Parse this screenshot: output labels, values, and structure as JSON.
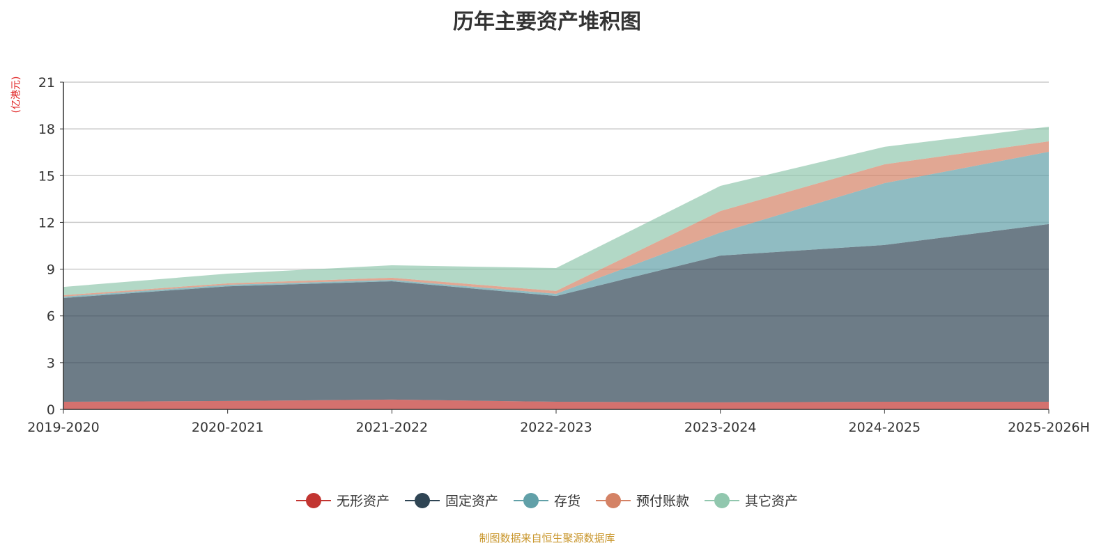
{
  "chart_data": {
    "type": "area",
    "stacked": true,
    "title": "历年主要资产堆积图",
    "ylabel": "(亿港元)",
    "xlabel": "",
    "ylim": [
      0,
      21
    ],
    "yticks": [
      0,
      3,
      6,
      9,
      12,
      15,
      18,
      21
    ],
    "grid": true,
    "legend_position": "bottom",
    "categories": [
      "2019-2020",
      "2020-2021",
      "2021-2022",
      "2022-2023",
      "2023-2024",
      "2024-2025",
      "2025-2026H"
    ],
    "series": [
      {
        "name": "无形资产",
        "color": "#c23531",
        "values": [
          0.49,
          0.54,
          0.63,
          0.49,
          0.45,
          0.49,
          0.49
        ]
      },
      {
        "name": "固定资产",
        "color": "#2f4554",
        "values": [
          6.66,
          7.36,
          7.59,
          6.79,
          9.42,
          10.06,
          11.4
        ]
      },
      {
        "name": "存货",
        "color": "#61a0a8",
        "values": [
          0.09,
          0.1,
          0.09,
          0.14,
          1.48,
          3.97,
          4.64
        ]
      },
      {
        "name": "预付账款",
        "color": "#d48265",
        "values": [
          0.09,
          0.09,
          0.14,
          0.18,
          1.38,
          1.21,
          0.67
        ]
      },
      {
        "name": "其它资产",
        "color": "#91c7ae",
        "values": [
          0.53,
          0.62,
          0.8,
          1.47,
          1.61,
          1.12,
          0.94
        ]
      }
    ]
  },
  "source": "制图数据来自恒生聚源数据库"
}
